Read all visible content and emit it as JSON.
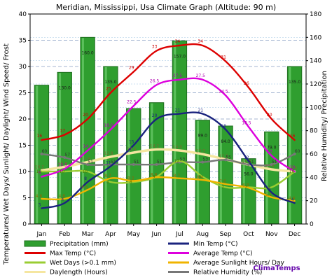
{
  "chart_data": {
    "type": "bar",
    "title": "Meridian, Mississippi, Usa Climate Graph (Altitude: 90 m)",
    "ylabel_left": "Temperatures/ Wet Days/ Sunlight/ Daylight/ Wind Speed/ Frost",
    "ylabel_right": "Relative Humidity/ Precipitation",
    "brand": "ClimaTemps",
    "categories": [
      "Jan",
      "Feb",
      "Mar",
      "Apr",
      "May",
      "Jun",
      "Jul",
      "Aug",
      "Sep",
      "Oct",
      "Nov",
      "Dec"
    ],
    "left_axis": {
      "min": 0,
      "max": 40,
      "ticks": [
        "0",
        "5",
        "10",
        "15",
        "20",
        "25",
        "30",
        "35",
        "40"
      ]
    },
    "right_axis": {
      "min": 0,
      "max": 180,
      "ticks": [
        "0",
        "20",
        "40",
        "60",
        "80",
        "100",
        "120",
        "140",
        "160",
        "180"
      ]
    },
    "grid": true,
    "legend_position": "bottom",
    "series": [
      {
        "name": "Precipitation (mm)",
        "type": "bar",
        "axis": "right",
        "color": "#2f9e2f",
        "values": [
          119.0,
          130.0,
          160.0,
          135.0,
          99.0,
          104.0,
          157.0,
          89.0,
          84.0,
          56.0,
          79.0,
          135.0
        ],
        "labels": [
          "",
          "130.0",
          "160.0",
          "135.0",
          "",
          "",
          "157.0",
          "89.0",
          "84.0",
          "56.0",
          "79.0",
          "135.0"
        ]
      },
      {
        "name": "Max Temp (°C)",
        "type": "line",
        "axis": "left",
        "color": "#dd0000",
        "values": [
          16,
          17,
          20,
          25,
          29,
          33,
          34,
          34,
          31,
          26,
          20,
          16
        ],
        "labels": [
          "16",
          "17",
          "20",
          "25",
          "29",
          "33",
          "34",
          "34",
          "31",
          "26",
          "20",
          "16"
        ]
      },
      {
        "name": "Min Temp (°C)",
        "type": "line",
        "axis": "left",
        "color": "#1a237e",
        "values": [
          3,
          4,
          8,
          11,
          15,
          20,
          21,
          21,
          18,
          12,
          6,
          4
        ],
        "labels": [
          "3",
          "4",
          "8",
          "11",
          "15",
          "20",
          "21",
          "21",
          "18",
          "12",
          "6",
          "4"
        ]
      },
      {
        "name": "Average Temp (°C)",
        "type": "line",
        "axis": "left",
        "color": "#dd00dd",
        "values": [
          9,
          10.5,
          14,
          18,
          22.5,
          26.5,
          27.5,
          27.5,
          24.5,
          18.5,
          13,
          10
        ],
        "labels": [
          "9",
          "10.5",
          "14",
          "18.0",
          "22.5",
          "26.5",
          "27.5",
          "27.5",
          "24.5",
          "18.5",
          "13",
          "10"
        ]
      },
      {
        "name": "Wet Days (>0.1 mm)",
        "type": "line",
        "axis": "left",
        "color": "#9acd32",
        "values": [
          10,
          10,
          10,
          8,
          8,
          9,
          12,
          9,
          7,
          7,
          7,
          10
        ],
        "labels": [
          "10",
          "10",
          "10",
          "8",
          "8",
          "9",
          "12",
          "9",
          "7",
          "7",
          "7",
          "10"
        ]
      },
      {
        "name": "Average Sunlight Hours/ Day",
        "type": "line",
        "axis": "left",
        "color": "#f0b400",
        "values": [
          4.8,
          4.8,
          6.5,
          8.7,
          8.2,
          8.9,
          8.7,
          8.4,
          7.6,
          6.9,
          5.1,
          4.4
        ],
        "labels": [
          "4.8",
          "4.8",
          "6.5",
          "8.7",
          "8.2",
          "8.9",
          "8.7",
          "8.4",
          "7.6",
          "6.9",
          "5.1",
          "4.4"
        ]
      },
      {
        "name": "Daylength (Hours)",
        "type": "line",
        "axis": "left",
        "color": "#f5e6a0",
        "values": [
          10.2,
          10.9,
          11.8,
          12.8,
          13.6,
          14.2,
          14.0,
          13.3,
          12.3,
          11.3,
          10.4,
          10.0
        ],
        "labels": [
          "10.2",
          "10.9",
          "11.8",
          "12.8",
          "13.6",
          "14.2",
          "14.0",
          "13.3",
          "12.3",
          "11.3",
          "10.4",
          "10.0"
        ]
      },
      {
        "name": "Relative Humidity (%)",
        "type": "line",
        "axis": "right",
        "color": "#777777",
        "values": [
          60,
          57,
          51,
          51,
          51,
          51,
          53,
          53,
          55,
          51,
          51,
          60
        ],
        "labels": [
          "60",
          "57",
          "51",
          "51",
          "51",
          "51",
          "53",
          "53",
          "55",
          "51",
          "51",
          "60"
        ]
      }
    ]
  }
}
